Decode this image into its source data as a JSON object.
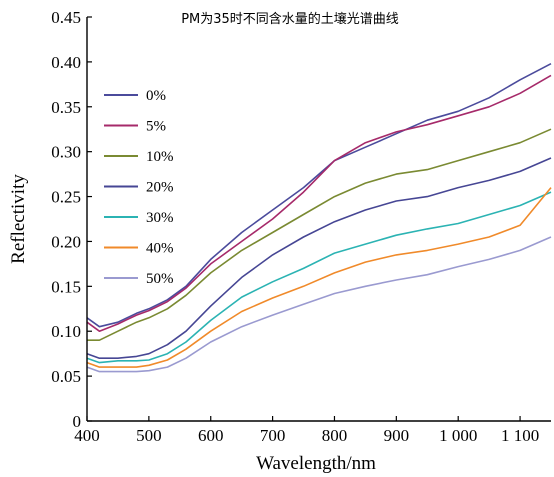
{
  "chart_data": {
    "type": "line",
    "title": "PM为35时不同含水量的土壤光谱曲线",
    "xlabel": "Wavelength/nm",
    "ylabel": "Reflectivity",
    "xlim": [
      400,
      1150
    ],
    "ylim": [
      0,
      0.45
    ],
    "x_ticks": [
      400,
      500,
      600,
      700,
      800,
      900,
      1000,
      1100
    ],
    "x_tick_labels": [
      "400",
      "500",
      "600",
      "700",
      "800",
      "900",
      "1 000",
      "1 100"
    ],
    "y_ticks": [
      0,
      0.05,
      0.1,
      0.15,
      0.2,
      0.25,
      0.3,
      0.35,
      0.4,
      0.45
    ],
    "y_tick_labels": [
      "0",
      "0.05",
      "0.10",
      "0.15",
      "0.20",
      "0.25",
      "0.30",
      "0.35",
      "0.40",
      "0.45"
    ],
    "grid": false,
    "legend_position": "left",
    "series": [
      {
        "name": "0%",
        "color": "#4b4b9c",
        "x": [
          400,
          420,
          450,
          480,
          500,
          530,
          560,
          600,
          650,
          700,
          750,
          800,
          850,
          900,
          950,
          1000,
          1050,
          1100,
          1150
        ],
        "y": [
          0.115,
          0.105,
          0.11,
          0.12,
          0.125,
          0.135,
          0.15,
          0.18,
          0.21,
          0.235,
          0.26,
          0.29,
          0.305,
          0.32,
          0.335,
          0.345,
          0.36,
          0.38,
          0.398
        ]
      },
      {
        "name": "5%",
        "color": "#a62a6a",
        "x": [
          400,
          420,
          450,
          480,
          500,
          530,
          560,
          600,
          650,
          700,
          750,
          800,
          850,
          900,
          950,
          1000,
          1050,
          1100,
          1150
        ],
        "y": [
          0.11,
          0.1,
          0.108,
          0.118,
          0.123,
          0.133,
          0.148,
          0.175,
          0.2,
          0.225,
          0.255,
          0.29,
          0.31,
          0.322,
          0.33,
          0.34,
          0.35,
          0.365,
          0.385
        ]
      },
      {
        "name": "10%",
        "color": "#7a8a32",
        "x": [
          400,
          420,
          450,
          480,
          500,
          530,
          560,
          600,
          650,
          700,
          750,
          800,
          850,
          900,
          950,
          1000,
          1050,
          1100,
          1150
        ],
        "y": [
          0.09,
          0.09,
          0.1,
          0.11,
          0.115,
          0.125,
          0.14,
          0.165,
          0.19,
          0.21,
          0.23,
          0.25,
          0.265,
          0.275,
          0.28,
          0.29,
          0.3,
          0.31,
          0.325
        ]
      },
      {
        "name": "20%",
        "color": "#464694",
        "x": [
          400,
          420,
          450,
          480,
          500,
          530,
          560,
          600,
          650,
          700,
          750,
          800,
          850,
          900,
          950,
          1000,
          1050,
          1100,
          1150
        ],
        "y": [
          0.075,
          0.07,
          0.07,
          0.072,
          0.075,
          0.085,
          0.1,
          0.128,
          0.16,
          0.185,
          0.205,
          0.222,
          0.235,
          0.245,
          0.25,
          0.26,
          0.268,
          0.278,
          0.293
        ]
      },
      {
        "name": "30%",
        "color": "#2bb3b3",
        "x": [
          400,
          420,
          450,
          480,
          500,
          530,
          560,
          600,
          650,
          700,
          750,
          800,
          850,
          900,
          950,
          1000,
          1050,
          1100,
          1150
        ],
        "y": [
          0.07,
          0.065,
          0.067,
          0.067,
          0.068,
          0.075,
          0.088,
          0.112,
          0.138,
          0.155,
          0.17,
          0.187,
          0.197,
          0.207,
          0.214,
          0.22,
          0.23,
          0.24,
          0.255
        ]
      },
      {
        "name": "40%",
        "color": "#f08a2a",
        "x": [
          400,
          420,
          450,
          480,
          500,
          530,
          560,
          600,
          650,
          700,
          750,
          800,
          850,
          900,
          950,
          1000,
          1050,
          1100,
          1150
        ],
        "y": [
          0.065,
          0.06,
          0.06,
          0.06,
          0.062,
          0.068,
          0.08,
          0.1,
          0.122,
          0.137,
          0.15,
          0.165,
          0.177,
          0.185,
          0.19,
          0.197,
          0.205,
          0.218,
          0.26
        ]
      },
      {
        "name": "50%",
        "color": "#9a9ad0",
        "x": [
          400,
          420,
          450,
          480,
          500,
          530,
          560,
          600,
          650,
          700,
          750,
          800,
          850,
          900,
          950,
          1000,
          1050,
          1100,
          1150
        ],
        "y": [
          0.06,
          0.055,
          0.055,
          0.055,
          0.056,
          0.06,
          0.07,
          0.088,
          0.105,
          0.118,
          0.13,
          0.142,
          0.15,
          0.157,
          0.163,
          0.172,
          0.18,
          0.19,
          0.205
        ]
      }
    ]
  }
}
